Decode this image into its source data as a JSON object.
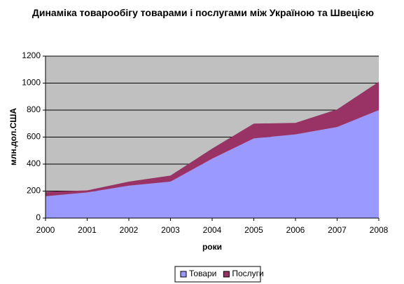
{
  "chart_data": {
    "type": "area",
    "stacked": true,
    "title": "Динаміка товарообігу товарами і послугами між Україною та Швецією",
    "x_label": "роки",
    "y_label": "млн.дол.США",
    "x": [
      2000,
      2001,
      2002,
      2003,
      2004,
      2005,
      2006,
      2007,
      2008
    ],
    "series": [
      {
        "name": "Товари",
        "color": "#9999ff",
        "values": [
          162,
          190,
          240,
          270,
          440,
          590,
          620,
          675,
          800
        ]
      },
      {
        "name": "Послуги",
        "color": "#993366",
        "values": [
          33,
          15,
          30,
          45,
          75,
          110,
          85,
          130,
          210
        ]
      }
    ],
    "xlim": [
      2000,
      2008
    ],
    "xticks": [
      2000,
      2001,
      2002,
      2003,
      2004,
      2005,
      2006,
      2007,
      2008
    ],
    "ylim": [
      0,
      1200
    ],
    "yticks": [
      0,
      200,
      400,
      600,
      800,
      1000,
      1200
    ],
    "grid": true,
    "plot_background": "#c0c0c0",
    "legend": "bottom"
  }
}
